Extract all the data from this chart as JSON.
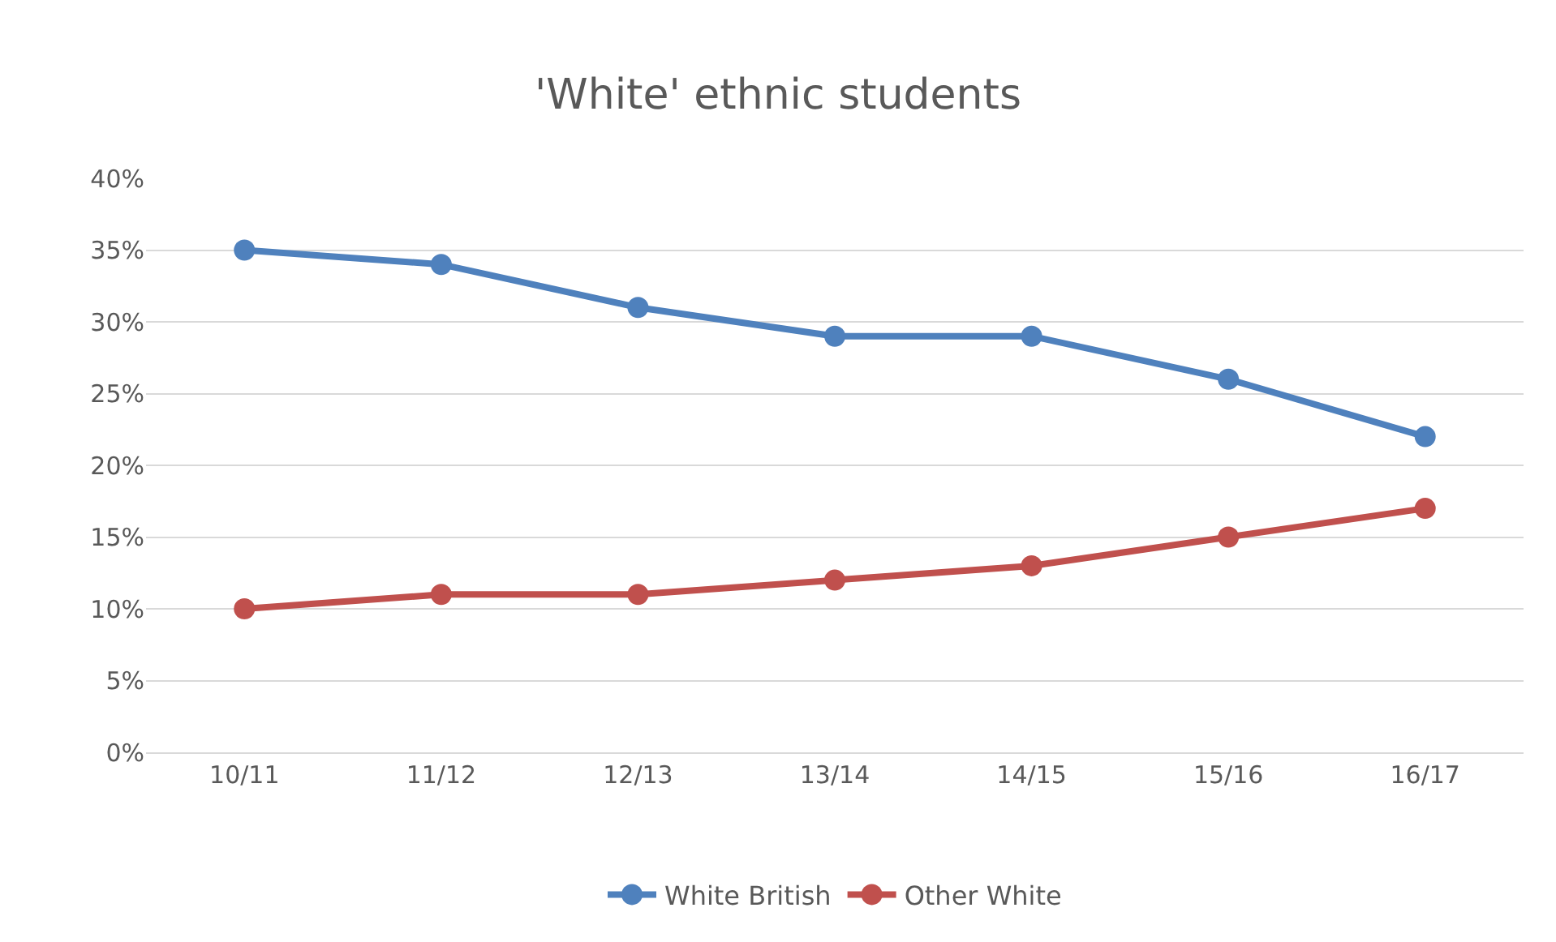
{
  "chart_data": {
    "type": "line",
    "title": "'White' ethnic students",
    "categories": [
      "10/11",
      "11/12",
      "12/13",
      "13/14",
      "14/15",
      "15/16",
      "16/17"
    ],
    "series": [
      {
        "name": "White British",
        "color": "#4f81bd",
        "values": [
          35,
          34,
          31,
          29,
          29,
          26,
          22
        ]
      },
      {
        "name": "Other White",
        "color": "#c0504d",
        "values": [
          10,
          11,
          11,
          12,
          13,
          15,
          17
        ]
      }
    ],
    "ylim": [
      0,
      40
    ],
    "yticks": [
      {
        "value": 0,
        "label": "0%"
      },
      {
        "value": 5,
        "label": "5%"
      },
      {
        "value": 10,
        "label": "10%"
      },
      {
        "value": 15,
        "label": "15%"
      },
      {
        "value": 20,
        "label": "20%"
      },
      {
        "value": 25,
        "label": "25%"
      },
      {
        "value": 30,
        "label": "30%"
      },
      {
        "value": 35,
        "label": "35%"
      },
      {
        "value": 40,
        "label": "40%"
      }
    ],
    "grid": "y",
    "legend": "bottom",
    "marker": "circle",
    "line_style": "solid"
  }
}
